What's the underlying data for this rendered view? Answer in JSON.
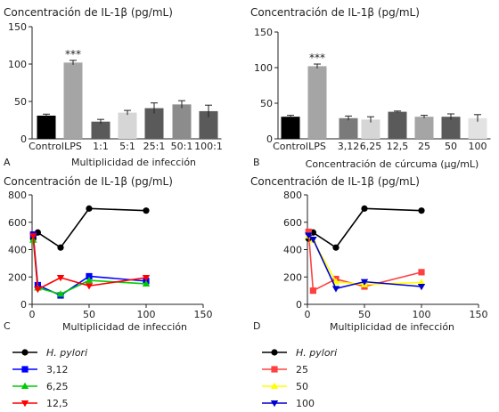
{
  "chart_data": [
    {
      "panel": "A",
      "type": "bar",
      "title": "Concentración de IL-1β (pg/mL)",
      "xlabel": "Multiplicidad de infección",
      "ylabel": "",
      "ylim": [
        0,
        150
      ],
      "yticks": [
        0,
        50,
        100,
        150
      ],
      "categories": [
        "Control",
        "LPS",
        "1:1",
        "5:1",
        "25:1",
        "50:1",
        "100:1"
      ],
      "values": [
        31,
        102,
        23,
        35,
        41,
        46,
        37
      ],
      "errors": [
        2,
        3,
        3,
        3,
        7,
        5,
        8
      ],
      "colors": [
        "#000000",
        "#a5a5a5",
        "#5a5a5a",
        "#d6d6d6",
        "#5a5a5a",
        "#8c8c8c",
        "#5a5a5a"
      ],
      "annotation": {
        "category": "LPS",
        "text": "***"
      }
    },
    {
      "panel": "B",
      "type": "bar",
      "title": "Concentración de IL-1β (pg/mL)",
      "xlabel": "Concentración de cúrcuma (μg/mL)",
      "ylabel": "",
      "ylim": [
        0,
        150
      ],
      "yticks": [
        0,
        50,
        100,
        150
      ],
      "categories": [
        "Control",
        "LPS",
        "3,12",
        "6,25",
        "12,5",
        "25",
        "50",
        "100"
      ],
      "values": [
        31,
        102,
        29,
        27,
        38,
        31,
        31,
        29
      ],
      "errors": [
        2,
        3,
        3,
        4,
        1,
        2,
        4,
        5
      ],
      "colors": [
        "#000000",
        "#a5a5a5",
        "#7a7a7a",
        "#d6d6d6",
        "#5a5a5a",
        "#a5a5a5",
        "#5a5a5a",
        "#e2e2e2"
      ],
      "annotation": {
        "category": "LPS",
        "text": "***"
      }
    },
    {
      "panel": "C",
      "type": "line",
      "title": "Concentración de IL-1β (pg/mL)",
      "xlabel": "Multiplicidad de infección",
      "ylabel": "",
      "xlim": [
        0,
        150
      ],
      "ylim": [
        0,
        800
      ],
      "xticks": [
        0,
        50,
        100,
        150
      ],
      "yticks": [
        0,
        200,
        400,
        600,
        800
      ],
      "series": [
        {
          "name": "H. pylori",
          "italic": true,
          "color": "#000000",
          "marker": "circle",
          "x": [
            1,
            5,
            25,
            50,
            100
          ],
          "y": [
            480,
            525,
            415,
            700,
            685
          ]
        },
        {
          "name": "3,12",
          "color": "#0000ff",
          "marker": "square",
          "x": [
            1,
            5,
            25,
            50,
            100
          ],
          "y": [
            510,
            140,
            65,
            205,
            170
          ]
        },
        {
          "name": "6,25",
          "color": "#00cc00",
          "marker": "triangle-up",
          "x": [
            1,
            5,
            25,
            50,
            100
          ],
          "y": [
            470,
            120,
            75,
            175,
            150
          ]
        },
        {
          "name": "12,5",
          "color": "#ff0000",
          "marker": "triangle-down",
          "x": [
            1,
            5,
            25,
            50,
            100
          ],
          "y": [
            500,
            110,
            195,
            135,
            195
          ]
        }
      ]
    },
    {
      "panel": "D",
      "type": "line",
      "title": "Concentración de IL-1β (pg/mL)",
      "xlabel": "Multiplicidad de infección",
      "ylabel": "",
      "xlim": [
        0,
        150
      ],
      "ylim": [
        0,
        800
      ],
      "xticks": [
        0,
        50,
        100,
        150
      ],
      "yticks": [
        0,
        200,
        400,
        600,
        800
      ],
      "series": [
        {
          "name": "H. pylori",
          "italic": true,
          "color": "#000000",
          "marker": "circle",
          "x": [
            1,
            5,
            25,
            50,
            100
          ],
          "y": [
            480,
            525,
            415,
            700,
            685
          ]
        },
        {
          "name": "25",
          "color": "#ff4040",
          "marker": "square",
          "x": [
            1,
            5,
            25,
            50,
            100
          ],
          "y": [
            530,
            100,
            185,
            130,
            235
          ]
        },
        {
          "name": "50",
          "color": "#ffff00",
          "marker": "triangle-up",
          "x": [
            1,
            5,
            25,
            50,
            100
          ],
          "y": [
            500,
            470,
            165,
            145,
            160
          ]
        },
        {
          "name": "100",
          "color": "#0000cc",
          "marker": "triangle-down",
          "x": [
            1,
            5,
            25,
            50,
            100
          ],
          "y": [
            505,
            475,
            115,
            165,
            130
          ]
        }
      ]
    }
  ]
}
